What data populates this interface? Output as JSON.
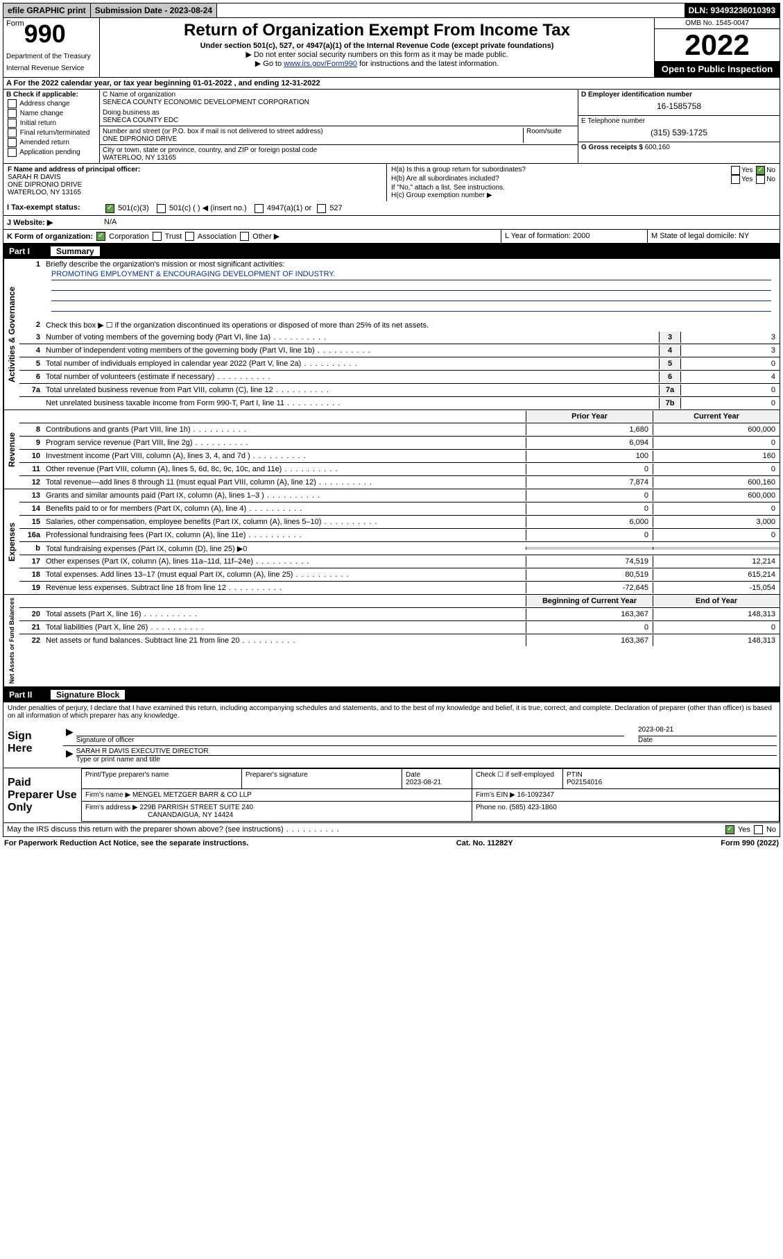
{
  "top": {
    "efile": "efile GRAPHIC print",
    "subdate_label": "Submission Date - 2023-08-24",
    "dln": "DLN: 93493236010393"
  },
  "header": {
    "form_prefix": "Form",
    "form_num": "990",
    "dept": "Department of the Treasury",
    "irs": "Internal Revenue Service",
    "title": "Return of Organization Exempt From Income Tax",
    "sub": "Under section 501(c), 527, or 4947(a)(1) of the Internal Revenue Code (except private foundations)",
    "hint1": "▶ Do not enter social security numbers on this form as it may be made public.",
    "hint2_pre": "▶ Go to ",
    "hint2_link": "www.irs.gov/Form990",
    "hint2_post": " for instructions and the latest information.",
    "omb": "OMB No. 1545-0047",
    "year": "2022",
    "open": "Open to Public Inspection"
  },
  "secA": {
    "taxyear": "A For the 2022 calendar year, or tax year beginning 01-01-2022    , and ending 12-31-2022",
    "B_label": "B Check if applicable:",
    "B_items": [
      "Address change",
      "Name change",
      "Initial return",
      "Final return/terminated",
      "Amended return",
      "Application pending"
    ],
    "C_name_label": "C Name of organization",
    "C_name": "SENECA COUNTY ECONOMIC DEVELOPMENT CORPORATION",
    "dba_label": "Doing business as",
    "dba": "SENECA COUNTY EDC",
    "addr_label": "Number and street (or P.O. box if mail is not delivered to street address)",
    "addr": "ONE DIPRONIO DRIVE",
    "room_label": "Room/suite",
    "city_label": "City or town, state or province, country, and ZIP or foreign postal code",
    "city": "WATERLOO, NY  13165",
    "D_label": "D Employer identification number",
    "D_val": "16-1585758",
    "E_label": "E Telephone number",
    "E_val": "(315) 539-1725",
    "G_label": "G Gross receipts $",
    "G_val": "600,160",
    "F_label": "F Name and address of principal officer:",
    "F_name": "SARAH R DAVIS",
    "F_addr1": "ONE DIPRONIO DRIVE",
    "F_addr2": "WATERLOO, NY  13165",
    "Ha": "H(a)  Is this a group return for subordinates?",
    "Hb": "H(b)  Are all subordinates included?",
    "H_note": "If \"No,\" attach a list. See instructions.",
    "Hc": "H(c)  Group exemption number ▶",
    "yes": "Yes",
    "no": "No"
  },
  "rowI": {
    "label": "I   Tax-exempt status:",
    "c3": "501(c)(3)",
    "c": "501(c) (  ) ◀ (insert no.)",
    "a1": "4947(a)(1) or",
    "s527": "527"
  },
  "rowJ": {
    "label": "J   Website: ▶",
    "val": "N/A"
  },
  "rowK": {
    "label": "K Form of organization:",
    "corp": "Corporation",
    "trust": "Trust",
    "assoc": "Association",
    "other": "Other ▶",
    "L": "L Year of formation: 2000",
    "M": "M State of legal domicile: NY"
  },
  "part1": {
    "num": "Part I",
    "title": "Summary",
    "q1": "Briefly describe the organization's mission or most significant activities:",
    "mission": "PROMOTING EMPLOYMENT & ENCOURAGING DEVELOPMENT OF INDUSTRY.",
    "q2": "Check this box ▶ ☐  if the organization discontinued its operations or disposed of more than 25% of its net assets.",
    "lines_gov": [
      {
        "n": "3",
        "t": "Number of voting members of the governing body (Part VI, line 1a)",
        "b": "3",
        "v": "3"
      },
      {
        "n": "4",
        "t": "Number of independent voting members of the governing body (Part VI, line 1b)",
        "b": "4",
        "v": "3"
      },
      {
        "n": "5",
        "t": "Total number of individuals employed in calendar year 2022 (Part V, line 2a)",
        "b": "5",
        "v": "0"
      },
      {
        "n": "6",
        "t": "Total number of volunteers (estimate if necessary)",
        "b": "6",
        "v": "4"
      },
      {
        "n": "7a",
        "t": "Total unrelated business revenue from Part VIII, column (C), line 12",
        "b": "7a",
        "v": "0"
      },
      {
        "n": "",
        "t": "Net unrelated business taxable income from Form 990-T, Part I, line 11",
        "b": "7b",
        "v": "0"
      }
    ],
    "col_prior": "Prior Year",
    "col_curr": "Current Year",
    "lines_rev": [
      {
        "n": "8",
        "t": "Contributions and grants (Part VIII, line 1h)",
        "p": "1,680",
        "c": "600,000"
      },
      {
        "n": "9",
        "t": "Program service revenue (Part VIII, line 2g)",
        "p": "6,094",
        "c": "0"
      },
      {
        "n": "10",
        "t": "Investment income (Part VIII, column (A), lines 3, 4, and 7d )",
        "p": "100",
        "c": "160"
      },
      {
        "n": "11",
        "t": "Other revenue (Part VIII, column (A), lines 5, 6d, 8c, 9c, 10c, and 11e)",
        "p": "0",
        "c": "0"
      },
      {
        "n": "12",
        "t": "Total revenue—add lines 8 through 11 (must equal Part VIII, column (A), line 12)",
        "p": "7,874",
        "c": "600,160"
      }
    ],
    "lines_exp": [
      {
        "n": "13",
        "t": "Grants and similar amounts paid (Part IX, column (A), lines 1–3 )",
        "p": "0",
        "c": "600,000"
      },
      {
        "n": "14",
        "t": "Benefits paid to or for members (Part IX, column (A), line 4)",
        "p": "0",
        "c": "0"
      },
      {
        "n": "15",
        "t": "Salaries, other compensation, employee benefits (Part IX, column (A), lines 5–10)",
        "p": "6,000",
        "c": "3,000"
      },
      {
        "n": "16a",
        "t": "Professional fundraising fees (Part IX, column (A), line 11e)",
        "p": "0",
        "c": "0"
      },
      {
        "n": "b",
        "t": "Total fundraising expenses (Part IX, column (D), line 25) ▶0",
        "p": "",
        "c": ""
      },
      {
        "n": "17",
        "t": "Other expenses (Part IX, column (A), lines 11a–11d, 11f–24e)",
        "p": "74,519",
        "c": "12,214"
      },
      {
        "n": "18",
        "t": "Total expenses. Add lines 13–17 (must equal Part IX, column (A), line 25)",
        "p": "80,519",
        "c": "615,214"
      },
      {
        "n": "19",
        "t": "Revenue less expenses. Subtract line 18 from line 12",
        "p": "-72,645",
        "c": "-15,054"
      }
    ],
    "col_begin": "Beginning of Current Year",
    "col_end": "End of Year",
    "lines_net": [
      {
        "n": "20",
        "t": "Total assets (Part X, line 16)",
        "p": "163,367",
        "c": "148,313"
      },
      {
        "n": "21",
        "t": "Total liabilities (Part X, line 26)",
        "p": "0",
        "c": "0"
      },
      {
        "n": "22",
        "t": "Net assets or fund balances. Subtract line 21 from line 20",
        "p": "163,367",
        "c": "148,313"
      }
    ]
  },
  "part2": {
    "num": "Part II",
    "title": "Signature Block",
    "declare": "Under penalties of perjury, I declare that I have examined this return, including accompanying schedules and statements, and to the best of my knowledge and belief, it is true, correct, and complete. Declaration of preparer (other than officer) is based on all information of which preparer has any knowledge.",
    "sign_here": "Sign Here",
    "sig_officer": "Signature of officer",
    "sig_date": "2023-08-21",
    "date_label": "Date",
    "officer_name": "SARAH R DAVIS EXECUTIVE DIRECTOR",
    "type_name": "Type or print name and title",
    "paid": "Paid Preparer Use Only",
    "prep_name_label": "Print/Type preparer's name",
    "prep_sig_label": "Preparer's signature",
    "prep_date": "2023-08-21",
    "check_self": "Check ☐ if self-employed",
    "ptin_label": "PTIN",
    "ptin": "P02154016",
    "firm_name_label": "Firm's name     ▶",
    "firm_name": "MENGEL METZGER BARR & CO LLP",
    "firm_ein_label": "Firm's EIN ▶",
    "firm_ein": "16-1092347",
    "firm_addr_label": "Firm's address ▶",
    "firm_addr1": "229B PARRISH STREET SUITE 240",
    "firm_addr2": "CANANDAIGUA, NY  14424",
    "phone_label": "Phone no.",
    "phone": "(585) 423-1860",
    "may_discuss": "May the IRS discuss this return with the preparer shown above? (see instructions)"
  },
  "footer": {
    "pra": "For Paperwork Reduction Act Notice, see the separate instructions.",
    "cat": "Cat. No. 11282Y",
    "form": "Form 990 (2022)"
  },
  "tabs": {
    "gov": "Activities & Governance",
    "rev": "Revenue",
    "exp": "Expenses",
    "net": "Net Assets or Fund Balances"
  }
}
